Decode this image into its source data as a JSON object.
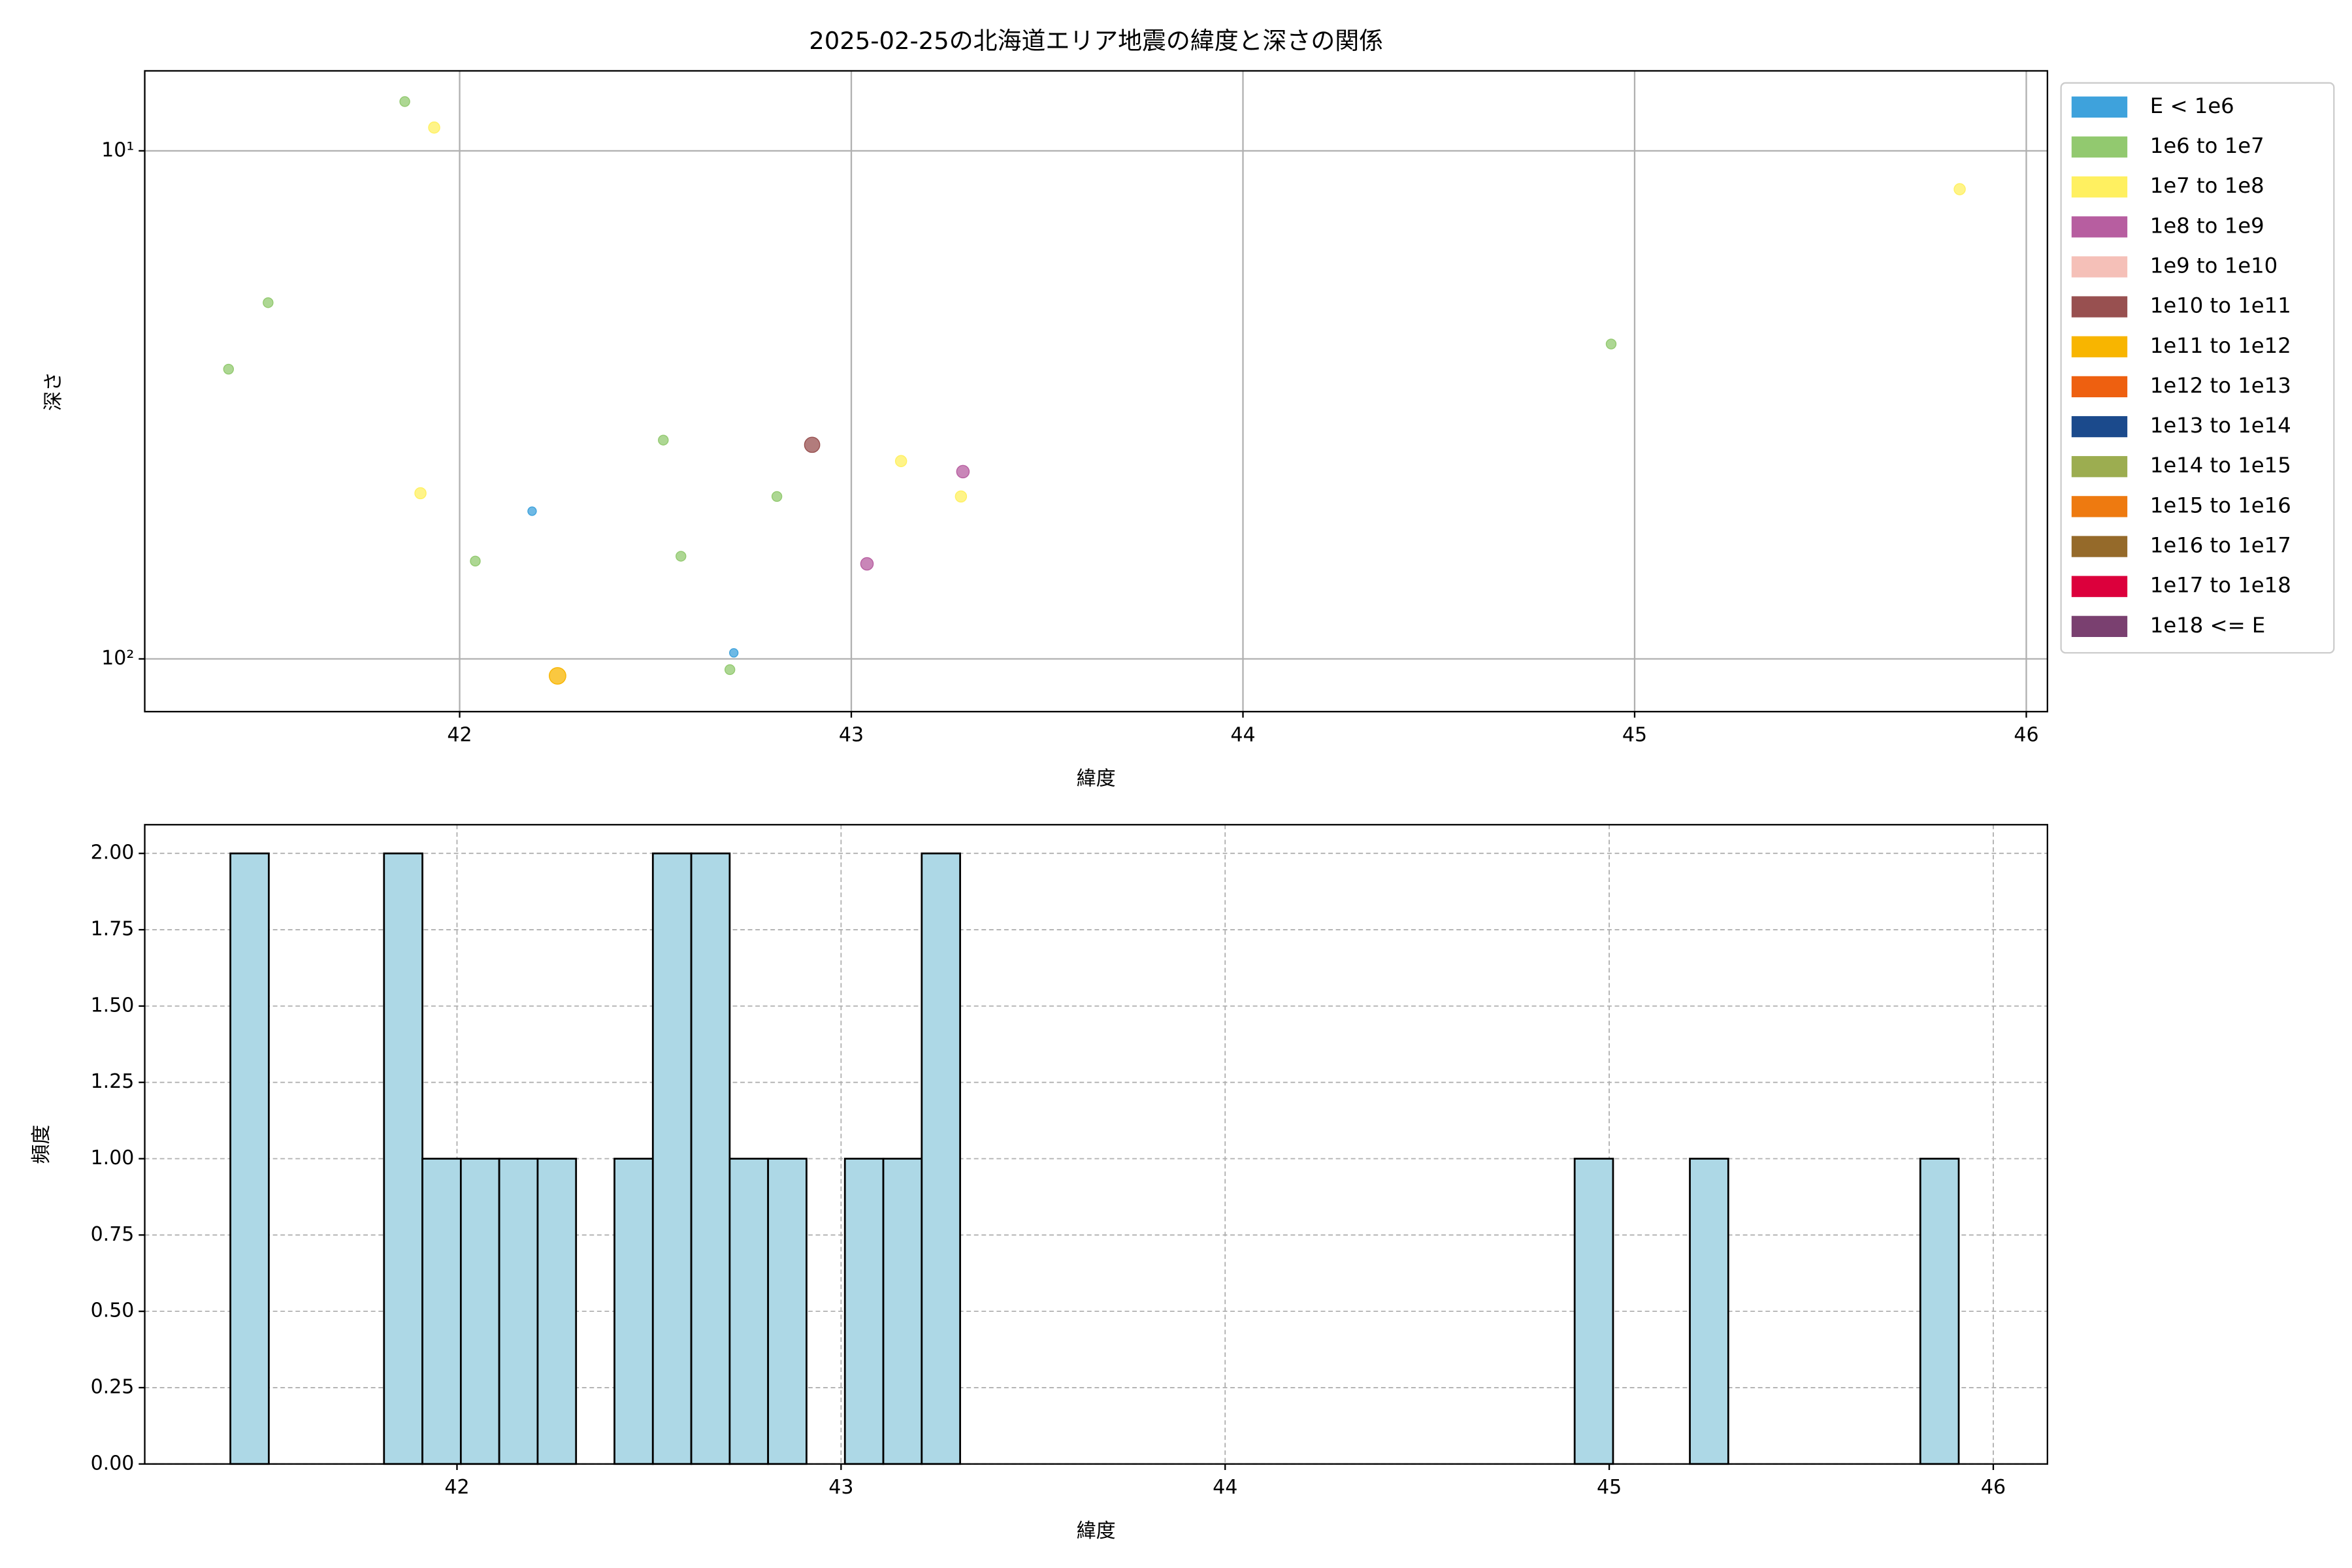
{
  "chart_data": [
    {
      "type": "scatter",
      "title": "2025-02-25の北海道エリア地震の緯度と深さの関係",
      "xlabel": "緯度",
      "ylabel": "深さ",
      "xlim": [
        41.196,
        46.054
      ],
      "xticks": [
        42,
        43,
        44,
        45,
        46
      ],
      "yscale": "log",
      "ylim": [
        127,
        6.96
      ],
      "yticks": [
        {
          "value": 10,
          "label": "10¹"
        },
        {
          "value": 100,
          "label": "10²"
        }
      ],
      "grid": true,
      "legend": "right",
      "series": [
        {
          "name": "E < 1e6",
          "color": "#3ea2dc",
          "x": [
            42.185,
            42.7
          ],
          "y": [
            51.2,
            97.3
          ]
        },
        {
          "name": "1e6 to 1e7",
          "color": "#92c96f",
          "x": [
            41.86,
            41.511,
            41.41,
            42.04,
            42.52,
            42.565,
            42.69,
            42.81,
            44.94
          ],
          "y": [
            8.0,
            19.9,
            26.9,
            64.2,
            37.1,
            62.8,
            105,
            47.9,
            24
          ]
        },
        {
          "name": "1e7 to 1e8",
          "color": "#fff060",
          "x": [
            41.935,
            41.9,
            43.127,
            43.28,
            45.83
          ],
          "y": [
            9.0,
            47.2,
            40.8,
            47.9,
            11.9
          ]
        },
        {
          "name": "1e8 to 1e9",
          "color": "#b75ea0",
          "x": [
            43.285,
            43.04
          ],
          "y": [
            42.8,
            65
          ]
        },
        {
          "name": "1e9 to 1e10",
          "color": "#f5c0b8",
          "x": [],
          "y": []
        },
        {
          "name": "1e10 to 1e11",
          "color": "#985050",
          "x": [
            42.9
          ],
          "y": [
            37.9
          ]
        },
        {
          "name": "1e11 to 1e12",
          "color": "#f8b500",
          "x": [
            42.25
          ],
          "y": [
            108
          ]
        },
        {
          "name": "1e12 to 1e13",
          "color": "#ee6010",
          "x": [],
          "y": []
        },
        {
          "name": "1e13 to 1e14",
          "color": "#1b4a8c",
          "x": [],
          "y": []
        },
        {
          "name": "1e14 to 1e15",
          "color": "#9cad50",
          "x": [],
          "y": []
        },
        {
          "name": "1e15 to 1e16",
          "color": "#ee7a10",
          "x": [],
          "y": []
        },
        {
          "name": "1e16 to 1e17",
          "color": "#956a2a",
          "x": [],
          "y": []
        },
        {
          "name": "1e17 to 1e18",
          "color": "#dc003c",
          "x": [],
          "y": []
        },
        {
          "name": "1e18 <= E",
          "color": "#7a4070",
          "x": [],
          "y": []
        }
      ]
    },
    {
      "type": "histogram",
      "xlabel": "緯度",
      "ylabel": "頻度",
      "color": "#add8e6",
      "edgecolor": "#000000",
      "bins": [
        41.41,
        41.51,
        41.61,
        41.71,
        41.81,
        41.91,
        42.01,
        42.11,
        42.21,
        42.31,
        42.41,
        42.51,
        42.61,
        42.71,
        42.81,
        42.91,
        43.01,
        43.11,
        43.21,
        43.31,
        43.41,
        43.51,
        43.61,
        43.71,
        43.81,
        43.91,
        44.01,
        44.11,
        44.21,
        44.31,
        44.41,
        44.51,
        44.61,
        44.71,
        44.81,
        44.91,
        45.01,
        45.11,
        45.21,
        45.31,
        45.41,
        45.51,
        45.61,
        45.71,
        45.81,
        45.91
      ],
      "counts": [
        2,
        0,
        0,
        0,
        2,
        1,
        1,
        1,
        1,
        0,
        1,
        2,
        2,
        1,
        1,
        0,
        1,
        1,
        2,
        0,
        0,
        0,
        0,
        0,
        0,
        0,
        0,
        0,
        0,
        0,
        0,
        0,
        0,
        0,
        0,
        1,
        0,
        0,
        1,
        0,
        0,
        0,
        0,
        0,
        1
      ],
      "xlim": [
        41.187,
        46.141
      ],
      "xticks": [
        42,
        43,
        44,
        45,
        46
      ],
      "ylim": [
        0,
        2.094
      ],
      "yticks": [
        {
          "value": 0,
          "label": "0.00"
        },
        {
          "value": 0.25,
          "label": "0.25"
        },
        {
          "value": 0.5,
          "label": "0.50"
        },
        {
          "value": 0.75,
          "label": "0.75"
        },
        {
          "value": 1,
          "label": "1.00"
        },
        {
          "value": 1.25,
          "label": "1.25"
        },
        {
          "value": 1.5,
          "label": "1.50"
        },
        {
          "value": 1.75,
          "label": "1.75"
        },
        {
          "value": 2,
          "label": "2.00"
        }
      ],
      "grid": true
    }
  ]
}
